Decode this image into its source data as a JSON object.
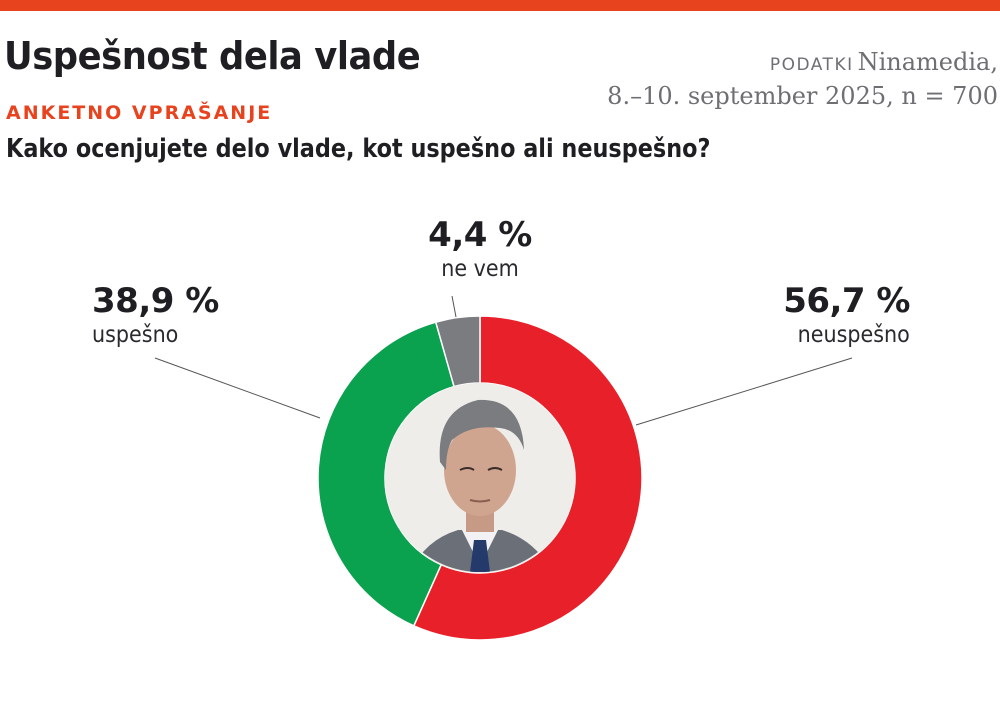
{
  "header": {
    "title": "Uspešnost dela vlade",
    "kicker": "ANKETNO VPRAŠANJE",
    "question": "Kako ocenjujete delo vlade, kot uspešno ali neuspešno?",
    "source_label": "PODATKI",
    "source_name": "Ninamedia,",
    "source_details": "8.–10. september 2025, n = 700"
  },
  "colors": {
    "accent": "#e8431f",
    "neuspesno": "#e8202a",
    "uspesno": "#0aa14f",
    "ne_vem": "#7b7c80",
    "photo_bg": "#efedea"
  },
  "labels": {
    "uspesno": {
      "value": "38,9 %",
      "category": "uspešno"
    },
    "neuspesno": {
      "value": "56,7 %",
      "category": "neuspešno"
    },
    "ne_vem": {
      "value": "4,4 %",
      "category": "ne vem"
    }
  },
  "center_image": {
    "description": "portrait-photo"
  },
  "chart_data": {
    "type": "pie",
    "subtype": "donut",
    "title": "Uspešnost dela vlade",
    "subtitle": "Kako ocenjujete delo vlade, kot uspešno ali neuspešno?",
    "categories": [
      "neuspešno",
      "uspešno",
      "ne vem"
    ],
    "values": [
      56.7,
      38.9,
      4.4
    ],
    "value_labels": [
      "56,7 %",
      "38,9 %",
      "4,4 %"
    ],
    "colors": [
      "#e8202a",
      "#0aa14f",
      "#7b7c80"
    ],
    "start_angle_deg": 0,
    "direction": "clockwise",
    "source": "PODATKI Ninamedia, 8.–10. september 2025, n = 700",
    "legend": "none (direct labels with leader lines)"
  }
}
